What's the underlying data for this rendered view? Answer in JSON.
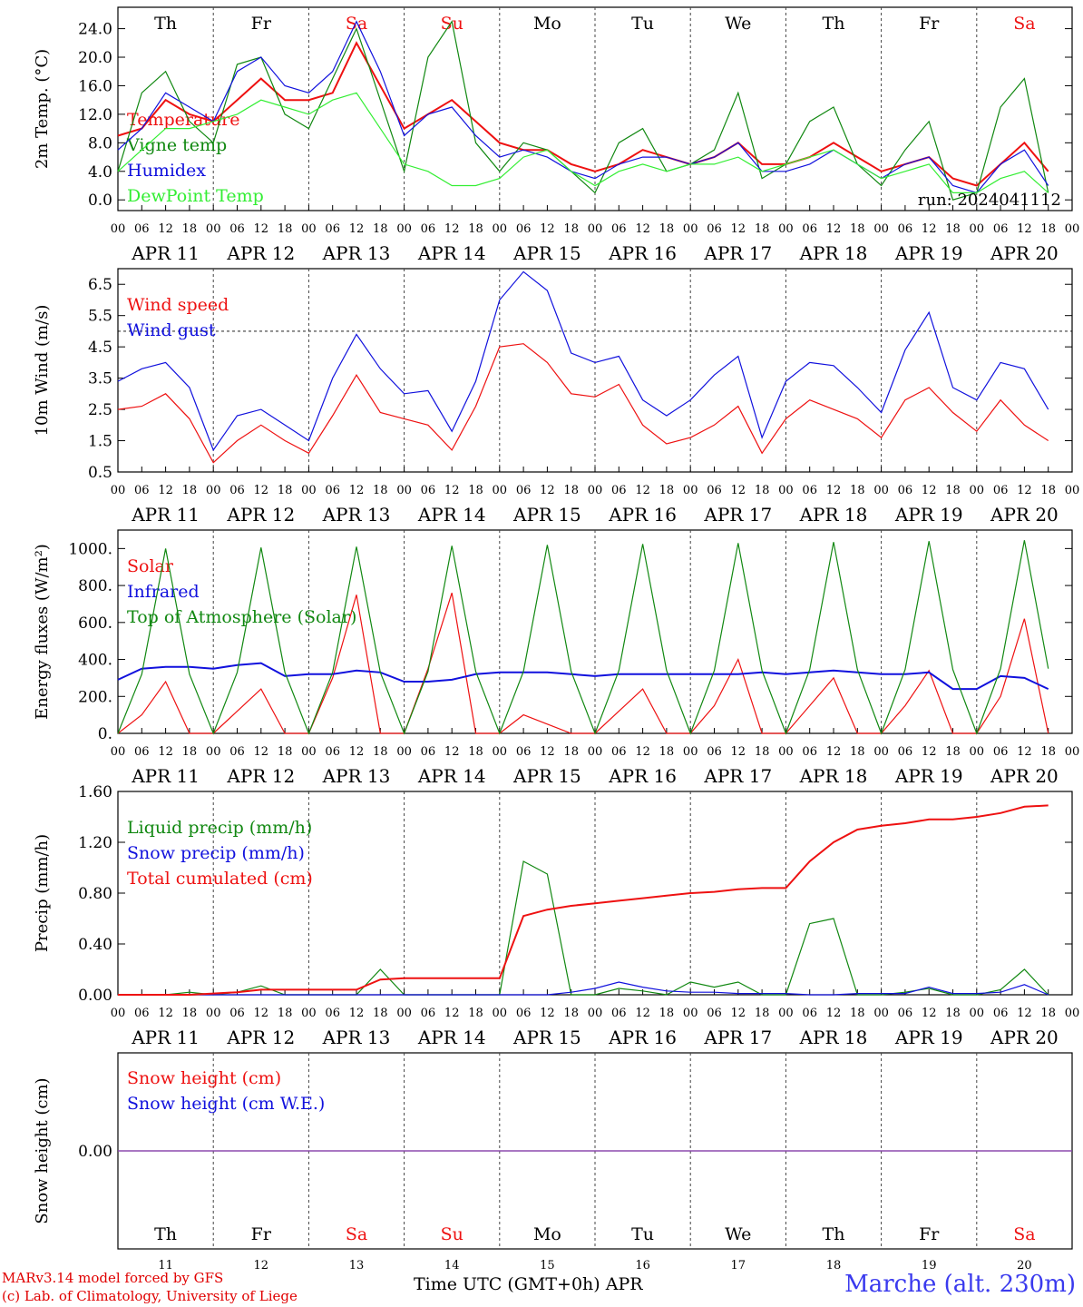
{
  "footer": {
    "credit_line1": "MARv3.14 model forced by GFS",
    "credit_line2": "(c) Lab. of Climatology, University of Liege",
    "station": "Marche (alt. 230m)",
    "xaxis_title": "Time UTC (GMT+0h) APR"
  },
  "days": [
    "Th",
    "Fr",
    "Sa",
    "Su",
    "Mo",
    "Tu",
    "We",
    "Th",
    "Fr",
    "Sa"
  ],
  "weekend_days": [
    2,
    3,
    9
  ],
  "date_labels": [
    "APR 11",
    "APR 12",
    "APR 13",
    "APR 14",
    "APR 15",
    "APR 16",
    "APR 17",
    "APR 18",
    "APR 19",
    "APR 20"
  ],
  "day_numbers": [
    "11",
    "12",
    "13",
    "14",
    "15",
    "16",
    "17",
    "18",
    "19",
    "20"
  ],
  "hour_ticks": [
    "00",
    "06",
    "12",
    "18"
  ],
  "end_tick": "00",
  "colors": {
    "red": "#ee1111",
    "green": "#118811",
    "blue": "#1111dd",
    "lightgreen": "#33ee33",
    "purple": "#8844aa"
  },
  "chart_data": [
    {
      "type": "line",
      "ylabel": "2m Temp. (°C)",
      "ylim": [
        -1.5,
        27
      ],
      "ticks": [
        "0.0",
        "4.0",
        "8.0",
        "12.0",
        "16.0",
        "20.0",
        "24.0"
      ],
      "tick_values": [
        0,
        4,
        8,
        12,
        16,
        20,
        24
      ],
      "annotation": "run: 2024041112",
      "x_hours": [
        0,
        6,
        12,
        18,
        24,
        30,
        36,
        42,
        48,
        54,
        60,
        66,
        72,
        78,
        84,
        90,
        96,
        102,
        108,
        114,
        120,
        126,
        132,
        138,
        144,
        150,
        156,
        162,
        168,
        174,
        180,
        186,
        192,
        198,
        204,
        210,
        216,
        222,
        228,
        234
      ],
      "series": [
        {
          "name": "Temperature",
          "color": "red",
          "values": [
            9,
            10,
            14,
            12,
            11,
            14,
            17,
            14,
            14,
            15,
            22,
            16,
            10,
            12,
            14,
            11,
            8,
            7,
            7,
            5,
            4,
            5,
            7,
            6,
            5,
            6,
            8,
            5,
            5,
            6,
            8,
            6,
            4,
            5,
            6,
            3,
            2,
            5,
            8,
            4
          ]
        },
        {
          "name": "Vigne temp",
          "color": "green",
          "values": [
            4,
            15,
            18,
            11,
            8,
            19,
            20,
            12,
            10,
            17,
            24,
            14,
            4,
            20,
            25,
            8,
            4,
            8,
            7,
            4,
            1,
            8,
            10,
            4,
            5,
            7,
            15,
            3,
            5,
            11,
            13,
            5,
            2,
            7,
            11,
            0,
            1,
            13,
            17,
            1
          ]
        },
        {
          "name": "Humidex",
          "color": "blue",
          "values": [
            7,
            10,
            15,
            13,
            11,
            18,
            20,
            16,
            15,
            18,
            25,
            18,
            9,
            12,
            13,
            9,
            6,
            7,
            6,
            4,
            3,
            5,
            6,
            6,
            5,
            6,
            8,
            4,
            4,
            5,
            7,
            5,
            3,
            5,
            6,
            2,
            1,
            5,
            7,
            2
          ]
        },
        {
          "name": "DewPoint Temp",
          "color": "lightgreen",
          "values": [
            4,
            7,
            10,
            10,
            11,
            12,
            14,
            13,
            12,
            14,
            15,
            10,
            5,
            4,
            2,
            2,
            3,
            6,
            7,
            4,
            2,
            4,
            5,
            4,
            5,
            5,
            6,
            4,
            5,
            6,
            7,
            5,
            3,
            4,
            5,
            1,
            1,
            3,
            4,
            1
          ]
        }
      ]
    },
    {
      "type": "line",
      "ylabel": "10m Wind (m/s)",
      "ylim": [
        0.5,
        7
      ],
      "ticks": [
        "0.5",
        "1.5",
        "2.5",
        "3.5",
        "4.5",
        "5.5",
        "6.5"
      ],
      "tick_values": [
        0.5,
        1.5,
        2.5,
        3.5,
        4.5,
        5.5,
        6.5
      ],
      "reference_line": 5,
      "x_hours": [
        0,
        6,
        12,
        18,
        24,
        30,
        36,
        42,
        48,
        54,
        60,
        66,
        72,
        78,
        84,
        90,
        96,
        102,
        108,
        114,
        120,
        126,
        132,
        138,
        144,
        150,
        156,
        162,
        168,
        174,
        180,
        186,
        192,
        198,
        204,
        210,
        216,
        222,
        228,
        234
      ],
      "series": [
        {
          "name": "Wind speed",
          "color": "red",
          "values": [
            2.5,
            2.6,
            3.0,
            2.2,
            0.8,
            1.5,
            2.0,
            1.5,
            1.1,
            2.3,
            3.6,
            2.4,
            2.2,
            2.0,
            1.2,
            2.6,
            4.5,
            4.6,
            4.0,
            3.0,
            2.9,
            3.3,
            2.0,
            1.4,
            1.6,
            2.0,
            2.6,
            1.1,
            2.2,
            2.8,
            2.5,
            2.2,
            1.6,
            2.8,
            3.2,
            2.4,
            1.8,
            2.8,
            2.0,
            1.5
          ]
        },
        {
          "name": "Wind gust",
          "color": "blue",
          "values": [
            3.4,
            3.8,
            4.0,
            3.2,
            1.2,
            2.3,
            2.5,
            2.0,
            1.5,
            3.5,
            4.9,
            3.8,
            3.0,
            3.1,
            1.8,
            3.4,
            6.0,
            6.9,
            6.3,
            4.3,
            4.0,
            4.2,
            2.8,
            2.3,
            2.8,
            3.6,
            4.2,
            1.6,
            3.4,
            4.0,
            3.9,
            3.2,
            2.4,
            4.4,
            5.6,
            3.2,
            2.8,
            4.0,
            3.8,
            2.5
          ]
        }
      ]
    },
    {
      "type": "line",
      "ylabel": "Energy fluxes (W/m²)",
      "ylim": [
        0,
        1100
      ],
      "ticks": [
        "0.",
        "200.",
        "400.",
        "600.",
        "800.",
        "1000."
      ],
      "tick_values": [
        0,
        200,
        400,
        600,
        800,
        1000
      ],
      "x_hours": [
        0,
        6,
        12,
        18,
        24,
        30,
        36,
        42,
        48,
        54,
        60,
        66,
        72,
        78,
        84,
        90,
        96,
        102,
        108,
        114,
        120,
        126,
        132,
        138,
        144,
        150,
        156,
        162,
        168,
        174,
        180,
        186,
        192,
        198,
        204,
        210,
        216,
        222,
        228,
        234
      ],
      "series": [
        {
          "name": "Solar",
          "color": "red",
          "values": [
            0,
            100,
            280,
            0,
            0,
            120,
            240,
            0,
            0,
            300,
            750,
            0,
            0,
            350,
            760,
            0,
            0,
            100,
            50,
            0,
            0,
            120,
            240,
            0,
            0,
            150,
            400,
            0,
            0,
            150,
            300,
            0,
            0,
            150,
            340,
            0,
            0,
            200,
            620,
            0
          ]
        },
        {
          "name": "Infrared",
          "color": "blue",
          "values": [
            290,
            350,
            360,
            360,
            350,
            370,
            380,
            310,
            320,
            320,
            340,
            330,
            280,
            280,
            290,
            320,
            330,
            330,
            330,
            320,
            310,
            320,
            320,
            320,
            320,
            320,
            320,
            330,
            320,
            330,
            340,
            330,
            320,
            320,
            330,
            240,
            240,
            310,
            300,
            240
          ]
        },
        {
          "name": "Top of Atmosphere (Solar)",
          "color": "green",
          "values": [
            0,
            320,
            1000,
            320,
            0,
            330,
            1005,
            330,
            0,
            330,
            1010,
            330,
            0,
            335,
            1015,
            335,
            0,
            335,
            1020,
            335,
            0,
            340,
            1025,
            340,
            0,
            340,
            1030,
            340,
            0,
            345,
            1035,
            345,
            0,
            345,
            1040,
            345,
            0,
            350,
            1045,
            350
          ]
        }
      ]
    },
    {
      "type": "line",
      "ylabel": "Precip (mm/h)",
      "ylim": [
        0,
        1.6
      ],
      "ticks": [
        "0.00",
        "0.40",
        "0.80",
        "1.20",
        "1.60"
      ],
      "tick_values": [
        0,
        0.4,
        0.8,
        1.2,
        1.6
      ],
      "x_hours": [
        0,
        6,
        12,
        18,
        24,
        30,
        36,
        42,
        48,
        54,
        60,
        66,
        72,
        78,
        84,
        90,
        96,
        102,
        108,
        114,
        120,
        126,
        132,
        138,
        144,
        150,
        156,
        162,
        168,
        174,
        180,
        186,
        192,
        198,
        204,
        210,
        216,
        222,
        228,
        234
      ],
      "series": [
        {
          "name": "Liquid precip (mm/h)",
          "color": "green",
          "values": [
            0,
            0,
            0,
            0.02,
            0,
            0.02,
            0.07,
            0,
            0,
            0,
            0,
            0.2,
            0,
            0,
            0,
            0,
            0,
            1.05,
            0.95,
            0,
            0,
            0.05,
            0.03,
            0,
            0.1,
            0.06,
            0.1,
            0,
            0,
            0.56,
            0.6,
            0,
            0,
            0.02,
            0.05,
            0,
            0,
            0.04,
            0.2,
            0
          ]
        },
        {
          "name": "Snow precip (mm/h)",
          "color": "blue",
          "values": [
            0,
            0,
            0,
            0,
            0,
            0,
            0,
            0,
            0,
            0,
            0,
            0,
            0,
            0,
            0,
            0,
            0,
            0,
            0,
            0.02,
            0.05,
            0.1,
            0.06,
            0.03,
            0.02,
            0.02,
            0.01,
            0.01,
            0.01,
            0,
            0,
            0.01,
            0.01,
            0.01,
            0.06,
            0.01,
            0.01,
            0.02,
            0.08,
            0
          ]
        },
        {
          "name": "Total cumulated (cm)",
          "color": "red",
          "values": [
            0,
            0,
            0,
            0,
            0.01,
            0.02,
            0.04,
            0.04,
            0.04,
            0.04,
            0.04,
            0.12,
            0.13,
            0.13,
            0.13,
            0.13,
            0.13,
            0.62,
            0.67,
            0.7,
            0.72,
            0.74,
            0.76,
            0.78,
            0.8,
            0.81,
            0.83,
            0.84,
            0.84,
            1.05,
            1.2,
            1.3,
            1.33,
            1.35,
            1.38,
            1.38,
            1.4,
            1.43,
            1.48,
            1.49
          ]
        }
      ]
    },
    {
      "type": "line",
      "ylabel": "Snow height (cm)",
      "ylim": [
        -1,
        1
      ],
      "ticks": [
        "0.00"
      ],
      "tick_values": [
        0
      ],
      "x_hours": [
        0,
        240
      ],
      "series": [
        {
          "name": "Snow height (cm)",
          "color": "red",
          "values": [
            0,
            0
          ]
        },
        {
          "name": "Snow height (cm W.E.)",
          "color": "blue",
          "values": [
            0,
            0
          ]
        }
      ]
    }
  ]
}
